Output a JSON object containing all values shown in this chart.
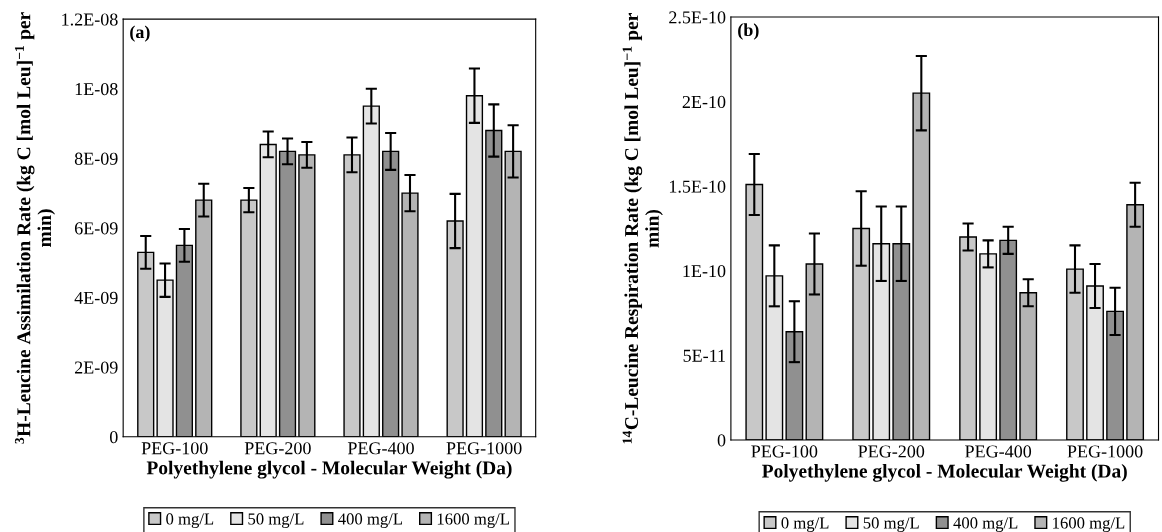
{
  "chart_data": [
    {
      "type": "bar",
      "annotations": [
        "(a)"
      ],
      "ylabel": "$^{3}$H-Leucine Assimilation Rate (kg C [mol Leu]$^{−1}$ per min)",
      "xlabel": "Polyethylene glycol - Molecular Weight (Da)",
      "categories": [
        "PEG-100",
        "PEG-200",
        "PEG-400",
        "PEG-1000"
      ],
      "ylim": [
        0,
        1.2e-08
      ],
      "yticks": [
        0,
        {
          "value": 2e-09,
          "label": "2E-09"
        },
        {
          "value": 4e-09,
          "label": "4E-09"
        },
        {
          "value": 6e-09,
          "label": "6E-09"
        },
        {
          "value": 8e-09,
          "label": "8E-09"
        },
        {
          "value": 1e-08,
          "label": "1E-08"
        },
        {
          "value": 1.2e-08,
          "label": "1.2E-08"
        }
      ],
      "legend": "bottom",
      "grid": false,
      "series": [
        {
          "name": "0 mg/L",
          "color": "#c8c8c8",
          "values": [
            5.3e-09,
            6.8e-09,
            8.1e-09,
            6.2e-09
          ],
          "errors": [
            4.7e-10,
            3.5e-10,
            5e-10,
            7.8e-10
          ]
        },
        {
          "name": "50 mg/L",
          "color": "#e4e4e4",
          "values": [
            4.5e-09,
            8.4e-09,
            9.5e-09,
            9.8e-09
          ],
          "errors": [
            4.8e-10,
            3.7e-10,
            5e-10,
            7.8e-10
          ]
        },
        {
          "name": "400 mg/L",
          "color": "#909090",
          "values": [
            5.5e-09,
            8.2e-09,
            8.2e-09,
            8.8e-09
          ],
          "errors": [
            4.7e-10,
            3.7e-10,
            5.3e-10,
            7.5e-10
          ]
        },
        {
          "name": "1600 mg/L",
          "color": "#b4b4b4",
          "values": [
            6.8e-09,
            8.1e-09,
            7e-09,
            8.2e-09
          ],
          "errors": [
            4.7e-10,
            3.7e-10,
            5.2e-10,
            7.5e-10
          ]
        }
      ]
    },
    {
      "type": "bar",
      "annotations": [
        "(b)"
      ],
      "ylabel": "$^{14}$C-Leucine Respiration Rate (kg C [mol Leu]$^{−1}$ per min)",
      "xlabel": "Polyethylene glycol - Molecular Weight (Da)",
      "categories": [
        "PEG-100",
        "PEG-200",
        "PEG-400",
        "PEG-1000"
      ],
      "ylim": [
        0,
        2.5e-10
      ],
      "yticks": [
        0,
        {
          "value": 5e-11,
          "label": "5E-11"
        },
        {
          "value": 1e-10,
          "label": "1E-10"
        },
        {
          "value": 1.5e-10,
          "label": "1.5E-10"
        },
        {
          "value": 2e-10,
          "label": "2E-10"
        },
        {
          "value": 2.5e-10,
          "label": "2.5E-10"
        }
      ],
      "legend": "bottom",
      "grid": false,
      "series": [
        {
          "name": "0 mg/L",
          "color": "#c8c8c8",
          "values": [
            1.51e-10,
            1.25e-10,
            1.2e-10,
            1.01e-10
          ],
          "errors": [
            1.8e-11,
            2.2e-11,
            8e-12,
            1.4e-11
          ]
        },
        {
          "name": "50 mg/L",
          "color": "#e4e4e4",
          "values": [
            9.7e-11,
            1.16e-10,
            1.1e-10,
            9.1e-11
          ],
          "errors": [
            1.8e-11,
            2.2e-11,
            8e-12,
            1.3e-11
          ]
        },
        {
          "name": "400 mg/L",
          "color": "#909090",
          "values": [
            6.4e-11,
            1.16e-10,
            1.18e-10,
            7.6e-11
          ],
          "errors": [
            1.8e-11,
            2.2e-11,
            8e-12,
            1.4e-11
          ]
        },
        {
          "name": "1600 mg/L",
          "color": "#b4b4b4",
          "values": [
            1.04e-10,
            2.05e-10,
            8.7e-11,
            1.39e-10
          ],
          "errors": [
            1.8e-11,
            2.2e-11,
            8e-12,
            1.3e-11
          ]
        }
      ]
    }
  ]
}
